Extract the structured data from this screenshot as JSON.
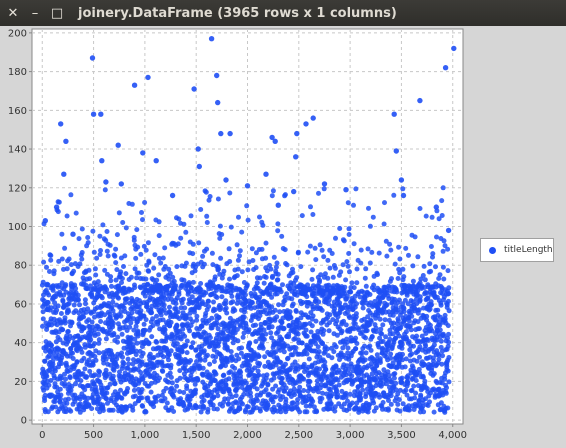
{
  "window": {
    "title": "joinery.DataFrame (3965 rows x 1 columns)",
    "close_glyph": "✕",
    "minimize_glyph": "–",
    "maximize_glyph": "□"
  },
  "chart_data": {
    "type": "scatter",
    "title": "",
    "xlabel": "",
    "ylabel": "",
    "xlim": [
      -100,
      4100
    ],
    "ylim": [
      -2,
      202
    ],
    "x_ticks": [
      0,
      500,
      1000,
      1500,
      2000,
      2500,
      3000,
      3500,
      4000
    ],
    "x_tick_labels": [
      "0",
      "500",
      "1,000",
      "1,500",
      "2,000",
      "2,500",
      "3,000",
      "3,500",
      "4,000"
    ],
    "y_ticks": [
      0,
      20,
      40,
      60,
      80,
      100,
      120,
      140,
      160,
      180,
      200
    ],
    "y_tick_labels": [
      "0",
      "20",
      "40",
      "60",
      "80",
      "100",
      "120",
      "140",
      "160",
      "180",
      "200"
    ],
    "grid": true,
    "legend_position": "right",
    "series": [
      {
        "name": "titleLength",
        "color": "#1f4ff5",
        "n_points": 3965,
        "outliers": [
          {
            "x": 30,
            "y": 103
          },
          {
            "x": 140,
            "y": 110
          },
          {
            "x": 180,
            "y": 153
          },
          {
            "x": 210,
            "y": 127
          },
          {
            "x": 230,
            "y": 144
          },
          {
            "x": 300,
            "y": 96
          },
          {
            "x": 490,
            "y": 187
          },
          {
            "x": 500,
            "y": 158
          },
          {
            "x": 570,
            "y": 158
          },
          {
            "x": 580,
            "y": 134
          },
          {
            "x": 620,
            "y": 123
          },
          {
            "x": 740,
            "y": 142
          },
          {
            "x": 770,
            "y": 122
          },
          {
            "x": 900,
            "y": 173
          },
          {
            "x": 980,
            "y": 138
          },
          {
            "x": 1030,
            "y": 177
          },
          {
            "x": 1110,
            "y": 134
          },
          {
            "x": 1270,
            "y": 116
          },
          {
            "x": 1480,
            "y": 171
          },
          {
            "x": 1520,
            "y": 140
          },
          {
            "x": 1530,
            "y": 131
          },
          {
            "x": 1650,
            "y": 197
          },
          {
            "x": 1700,
            "y": 178
          },
          {
            "x": 1710,
            "y": 164
          },
          {
            "x": 1740,
            "y": 148
          },
          {
            "x": 1790,
            "y": 124
          },
          {
            "x": 1830,
            "y": 148
          },
          {
            "x": 2000,
            "y": 121
          },
          {
            "x": 2180,
            "y": 127
          },
          {
            "x": 2240,
            "y": 146
          },
          {
            "x": 2270,
            "y": 144
          },
          {
            "x": 2300,
            "y": 111
          },
          {
            "x": 2450,
            "y": 118
          },
          {
            "x": 2480,
            "y": 148
          },
          {
            "x": 2470,
            "y": 136
          },
          {
            "x": 2570,
            "y": 153
          },
          {
            "x": 2640,
            "y": 156
          },
          {
            "x": 2750,
            "y": 122
          },
          {
            "x": 2960,
            "y": 119
          },
          {
            "x": 3430,
            "y": 158
          },
          {
            "x": 3450,
            "y": 139
          },
          {
            "x": 3500,
            "y": 124
          },
          {
            "x": 3520,
            "y": 116
          },
          {
            "x": 3680,
            "y": 165
          },
          {
            "x": 3930,
            "y": 182
          },
          {
            "x": 4010,
            "y": 192
          },
          {
            "x": 3840,
            "y": 110
          },
          {
            "x": 3960,
            "y": 98
          }
        ],
        "bulk": {
          "x_range": [
            0,
            3965
          ],
          "y_min": 0,
          "y_typical_max": 80,
          "y_mean": 43
        }
      }
    ]
  }
}
